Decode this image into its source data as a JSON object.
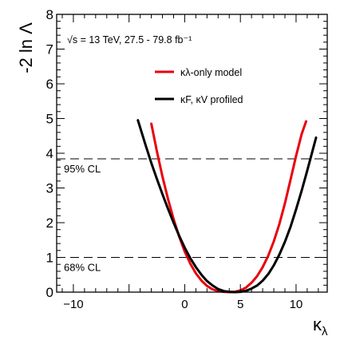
{
  "chart_data": {
    "type": "line",
    "title": "",
    "xlabel": "κλ",
    "ylabel": "-2 ln Λ",
    "xlim": [
      -11.5,
      12.8
    ],
    "ylim": [
      0,
      8
    ],
    "x_ticks": [
      -10,
      -5,
      0,
      5,
      10
    ],
    "x_tick_labels": [
      "−10",
      "",
      "0",
      "5",
      "10"
    ],
    "y_ticks": [
      0,
      1,
      2,
      3,
      4,
      5,
      6,
      7,
      8
    ],
    "y_tick_labels": [
      "0",
      "1",
      "2",
      "3",
      "4",
      "5",
      "6",
      "7",
      "8"
    ],
    "annotation": "√s = 13 TeV, 27.5 - 79.8 fb⁻¹",
    "reference_lines": [
      {
        "y": 1.0,
        "label": "68% CL",
        "style": "dashed"
      },
      {
        "y": 3.84,
        "label": "95% CL",
        "style": "dashed"
      }
    ],
    "legend_position": "upper-center",
    "series": [
      {
        "name": "κλ-only model",
        "color": "#e8000b",
        "x": [
          -3.0,
          -2.5,
          -2.0,
          -1.5,
          -1.0,
          -0.5,
          0.0,
          0.5,
          1.0,
          1.5,
          2.0,
          2.5,
          3.0,
          3.5,
          4.0,
          4.5,
          5.0,
          5.5,
          6.0,
          6.5,
          7.0,
          7.5,
          8.0,
          8.5,
          9.0,
          9.5,
          10.0,
          10.5,
          10.9
        ],
        "y": [
          4.85,
          4.05,
          3.33,
          2.68,
          2.1,
          1.6,
          1.17,
          0.82,
          0.54,
          0.33,
          0.18,
          0.08,
          0.03,
          0.01,
          0.0,
          0.01,
          0.05,
          0.13,
          0.27,
          0.46,
          0.72,
          1.05,
          1.46,
          1.96,
          2.56,
          3.24,
          3.92,
          4.55,
          4.92
        ]
      },
      {
        "name": "κF, κV profiled",
        "color": "#000000",
        "x": [
          -4.2,
          -3.5,
          -3.0,
          -2.5,
          -2.0,
          -1.5,
          -1.0,
          -0.5,
          0.0,
          0.5,
          1.0,
          1.5,
          2.0,
          2.5,
          3.0,
          3.5,
          4.0,
          4.5,
          5.0,
          5.5,
          6.0,
          6.5,
          7.0,
          7.5,
          8.0,
          8.5,
          9.0,
          9.5,
          10.0,
          10.5,
          11.0,
          11.5,
          11.8
        ],
        "y": [
          4.95,
          4.22,
          3.72,
          3.26,
          2.82,
          2.4,
          2.0,
          1.62,
          1.28,
          0.98,
          0.72,
          0.5,
          0.32,
          0.19,
          0.09,
          0.03,
          0.01,
          0.0,
          0.01,
          0.04,
          0.1,
          0.19,
          0.33,
          0.52,
          0.77,
          1.08,
          1.45,
          1.88,
          2.38,
          2.92,
          3.5,
          4.1,
          4.45
        ]
      }
    ]
  }
}
